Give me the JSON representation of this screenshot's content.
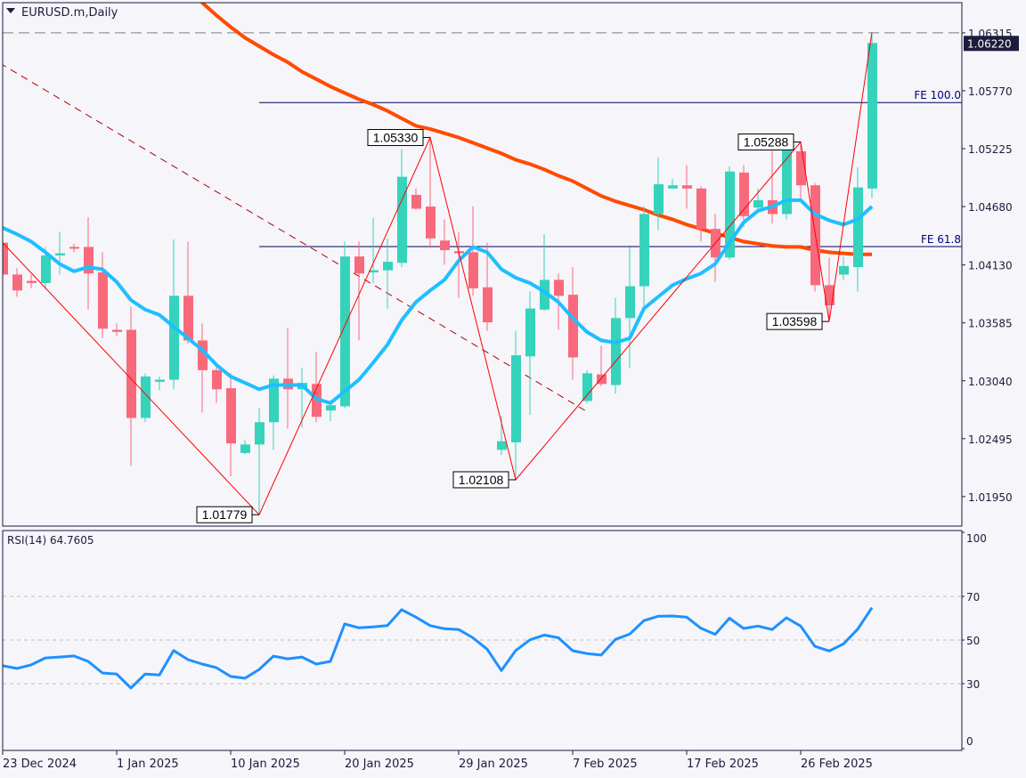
{
  "header": {
    "title": "EURUSD.m,Daily",
    "menu_icon": "triangle-down-icon"
  },
  "colors": {
    "background": "#f5f5fa",
    "bull": "#35d3bb",
    "bear": "#f8697b",
    "fast_ma": "#1ebfff",
    "slow_ma": "#ff4a00",
    "zigzag": "#ff0000",
    "trendline": "#b00000",
    "fibo": "#000060",
    "rsi": "#1e90ff",
    "frame": "#1c1c3c"
  },
  "chart_data": [
    {
      "type": "candlestick",
      "symbol": "EURUSD.m",
      "timeframe": "Daily",
      "ylim": [
        1.01672,
        1.06591
      ],
      "price_ticks": [
        "1.06315",
        "1.05770",
        "1.05225",
        "1.04680",
        "1.04130",
        "1.03585",
        "1.03040",
        "1.02495",
        "1.01950"
      ],
      "current_price": "1.06220",
      "ask_line": 1.06315,
      "date_labels": [
        {
          "label": "23 Dec 2024",
          "index": 0
        },
        {
          "label": "1 Jan 2025",
          "index": 8
        },
        {
          "label": "10 Jan 2025",
          "index": 16
        },
        {
          "label": "20 Jan 2025",
          "index": 24
        },
        {
          "label": "29 Jan 2025",
          "index": 32
        },
        {
          "label": "7 Feb 2025",
          "index": 40
        },
        {
          "label": "17 Feb 2025",
          "index": 48
        },
        {
          "label": "26 Feb 2025",
          "index": 56
        }
      ],
      "ohlc": [
        [
          1.0434,
          1.0442,
          1.0384,
          1.0404
        ],
        [
          1.0404,
          1.041,
          1.0383,
          1.0389
        ],
        [
          1.0398,
          1.0404,
          1.0391,
          1.0396
        ],
        [
          1.0396,
          1.043,
          1.039,
          1.0422
        ],
        [
          1.0422,
          1.0444,
          1.0404,
          1.0424
        ],
        [
          1.043,
          1.0433,
          1.0425,
          1.0429
        ],
        [
          1.043,
          1.0458,
          1.0371,
          1.0405
        ],
        [
          1.0406,
          1.0425,
          1.0344,
          1.0353
        ],
        [
          1.0352,
          1.0358,
          1.0346,
          1.035
        ],
        [
          1.0352,
          1.0374,
          1.0224,
          1.0269
        ],
        [
          1.0269,
          1.0311,
          1.0265,
          1.0308
        ],
        [
          1.0303,
          1.0308,
          1.0295,
          1.0305
        ],
        [
          1.0305,
          1.0437,
          1.0296,
          1.0384
        ],
        [
          1.0384,
          1.0435,
          1.0339,
          1.0342
        ],
        [
          1.0342,
          1.0358,
          1.0274,
          1.0314
        ],
        [
          1.0314,
          1.0321,
          1.0283,
          1.0296
        ],
        [
          1.0297,
          1.0311,
          1.0214,
          1.0245
        ],
        [
          1.0236,
          1.0248,
          1.0235,
          1.0244
        ],
        [
          1.0244,
          1.0278,
          1.0178,
          1.0265
        ],
        [
          1.0265,
          1.0309,
          1.0239,
          1.0306
        ],
        [
          1.0306,
          1.0354,
          1.0259,
          1.0296
        ],
        [
          1.0296,
          1.0316,
          1.026,
          1.0302
        ],
        [
          1.0301,
          1.0331,
          1.0265,
          1.027
        ],
        [
          1.0276,
          1.0282,
          1.0266,
          1.0281
        ],
        [
          1.028,
          1.0435,
          1.0278,
          1.0421
        ],
        [
          1.0421,
          1.0435,
          1.0342,
          1.0405
        ],
        [
          1.0406,
          1.0457,
          1.0396,
          1.0408
        ],
        [
          1.0408,
          1.0438,
          1.0372,
          1.0416
        ],
        [
          1.0415,
          1.0522,
          1.0411,
          1.0496
        ],
        [
          1.0479,
          1.0485,
          1.0465,
          1.0466
        ],
        [
          1.0468,
          1.0533,
          1.0429,
          1.0438
        ],
        [
          1.0436,
          1.0456,
          1.0413,
          1.0427
        ],
        [
          1.0426,
          1.0444,
          1.0382,
          1.0424
        ],
        [
          1.0425,
          1.0468,
          1.0384,
          1.0391
        ],
        [
          1.0392,
          1.0434,
          1.0351,
          1.0359
        ],
        [
          1.0239,
          1.0271,
          1.0234,
          1.0247
        ],
        [
          1.0246,
          1.0351,
          1.0211,
          1.0328
        ],
        [
          1.0327,
          1.0388,
          1.0272,
          1.0372
        ],
        [
          1.0371,
          1.0442,
          1.037,
          1.0399
        ],
        [
          1.0399,
          1.0405,
          1.0352,
          1.0384
        ],
        [
          1.0385,
          1.0411,
          1.0305,
          1.0326
        ],
        [
          1.0285,
          1.0314,
          1.0283,
          1.0311
        ],
        [
          1.031,
          1.0337,
          1.0299,
          1.0301
        ],
        [
          1.03,
          1.0382,
          1.0292,
          1.0363
        ],
        [
          1.0363,
          1.043,
          1.0316,
          1.0393
        ],
        [
          1.0393,
          1.0468,
          1.0373,
          1.0461
        ],
        [
          1.0461,
          1.0514,
          1.0446,
          1.0489
        ],
        [
          1.0485,
          1.0494,
          1.0485,
          1.0488
        ],
        [
          1.0488,
          1.0507,
          1.0466,
          1.0485
        ],
        [
          1.0485,
          1.0487,
          1.0435,
          1.0447
        ],
        [
          1.0447,
          1.0461,
          1.0397,
          1.042
        ],
        [
          1.042,
          1.0506,
          1.0418,
          1.0501
        ],
        [
          1.05,
          1.0507,
          1.0449,
          1.0459
        ],
        [
          1.0467,
          1.0485,
          1.0464,
          1.0474
        ],
        [
          1.0474,
          1.0526,
          1.0452,
          1.0461
        ],
        [
          1.0461,
          1.0527,
          1.0456,
          1.0522
        ],
        [
          1.052,
          1.0529,
          1.0474,
          1.0488
        ],
        [
          1.0488,
          1.049,
          1.0388,
          1.0394
        ],
        [
          1.0394,
          1.042,
          1.036,
          1.0375
        ],
        [
          1.0404,
          1.0421,
          1.0399,
          1.0412
        ],
        [
          1.0411,
          1.0505,
          1.0388,
          1.0486
        ],
        [
          1.0485,
          1.0632,
          1.0476,
          1.0622
        ]
      ],
      "fast_ma": [
        1.0448,
        1.0442,
        1.0435,
        1.0425,
        1.0414,
        1.0407,
        1.0411,
        1.0409,
        1.0397,
        1.038,
        1.0371,
        1.0366,
        1.0355,
        1.0344,
        1.0333,
        1.0319,
        1.0308,
        1.0302,
        1.0296,
        1.03,
        1.03,
        1.03,
        1.0287,
        1.0283,
        1.0294,
        1.0305,
        1.0321,
        1.0338,
        1.0361,
        1.0378,
        1.0389,
        1.0399,
        1.0417,
        1.043,
        1.0425,
        1.0409,
        1.0401,
        1.0396,
        1.0388,
        1.0378,
        1.0363,
        1.035,
        1.0342,
        1.034,
        1.0344,
        1.0372,
        1.0383,
        1.0394,
        1.04,
        1.0405,
        1.0414,
        1.0434,
        1.0453,
        1.0464,
        1.0468,
        1.0474,
        1.0474,
        1.0461,
        1.0455,
        1.0451,
        1.0456,
        1.0468
      ],
      "slow_ma": [
        null,
        null,
        null,
        null,
        null,
        null,
        null,
        null,
        null,
        null,
        null,
        null,
        null,
        null,
        1.066,
        1.0648,
        1.0637,
        1.0627,
        1.0619,
        1.0611,
        1.0604,
        1.0595,
        1.0588,
        1.0581,
        1.0575,
        1.0569,
        1.0564,
        1.0558,
        1.0551,
        1.0544,
        1.0541,
        1.0537,
        1.0533,
        1.0528,
        1.0523,
        1.0518,
        1.0512,
        1.0508,
        1.0503,
        1.0497,
        1.0492,
        1.0485,
        1.0478,
        1.0473,
        1.0469,
        1.0465,
        1.046,
        1.0456,
        1.0451,
        1.0447,
        1.0443,
        1.0439,
        1.0435,
        1.0433,
        1.0431,
        1.043,
        1.043,
        1.0427,
        1.0425,
        1.0424,
        1.0423,
        1.0423
      ],
      "zigzag": [
        [
          0,
          1.0434
        ],
        [
          18,
          1.01779
        ],
        [
          30,
          1.0533
        ],
        [
          36,
          1.02108
        ],
        [
          56,
          1.05288
        ],
        [
          58,
          1.03598
        ],
        [
          61,
          1.0632
        ]
      ],
      "zigzag_labels": [
        {
          "label": "1.01779",
          "index": 18,
          "price": 1.01779,
          "side": "left"
        },
        {
          "label": "1.05330",
          "index": 30,
          "price": 1.0533,
          "side": "left"
        },
        {
          "label": "1.02108",
          "index": 36,
          "price": 1.02108,
          "side": "left"
        },
        {
          "label": "1.05288",
          "index": 56,
          "price": 1.05288,
          "side": "left"
        },
        {
          "label": "1.03598",
          "index": 58,
          "price": 1.03598,
          "side": "left"
        }
      ],
      "trendline": [
        [
          -0.2,
          1.0603
        ],
        [
          41,
          1.0275
        ]
      ],
      "fibo_expansion": [
        {
          "label": "FE 100.0",
          "price": 1.05659,
          "from_index": 18
        },
        {
          "label": "FE 61.8",
          "price": 1.04303,
          "from_index": 18
        }
      ]
    },
    {
      "type": "line",
      "title": "RSI(14) 64.7605",
      "ylim": [
        0,
        100
      ],
      "levels": [
        70,
        50,
        30
      ],
      "ticks": [
        "100",
        "70",
        "50",
        "30",
        "0"
      ],
      "values": [
        38.2,
        37,
        38.6,
        41.8,
        42.2,
        42.7,
        40.2,
        34.9,
        34.4,
        28,
        34.4,
        34,
        45.2,
        41,
        39,
        37.3,
        33.3,
        32.5,
        36.5,
        42.6,
        41.4,
        42.2,
        39,
        40.2,
        57.4,
        55.6,
        56,
        56.6,
        63.9,
        60.5,
        56.6,
        55.2,
        54.8,
        51,
        45.8,
        36,
        45.2,
        50.1,
        52.3,
        51,
        45.1,
        43.8,
        43.1,
        50.3,
        52.7,
        58.9,
        60.9,
        61,
        60.5,
        55.4,
        52.6,
        60,
        55.3,
        56.4,
        54.8,
        60.2,
        56.4,
        47.1,
        45,
        48.2,
        55,
        64.8
      ]
    }
  ]
}
